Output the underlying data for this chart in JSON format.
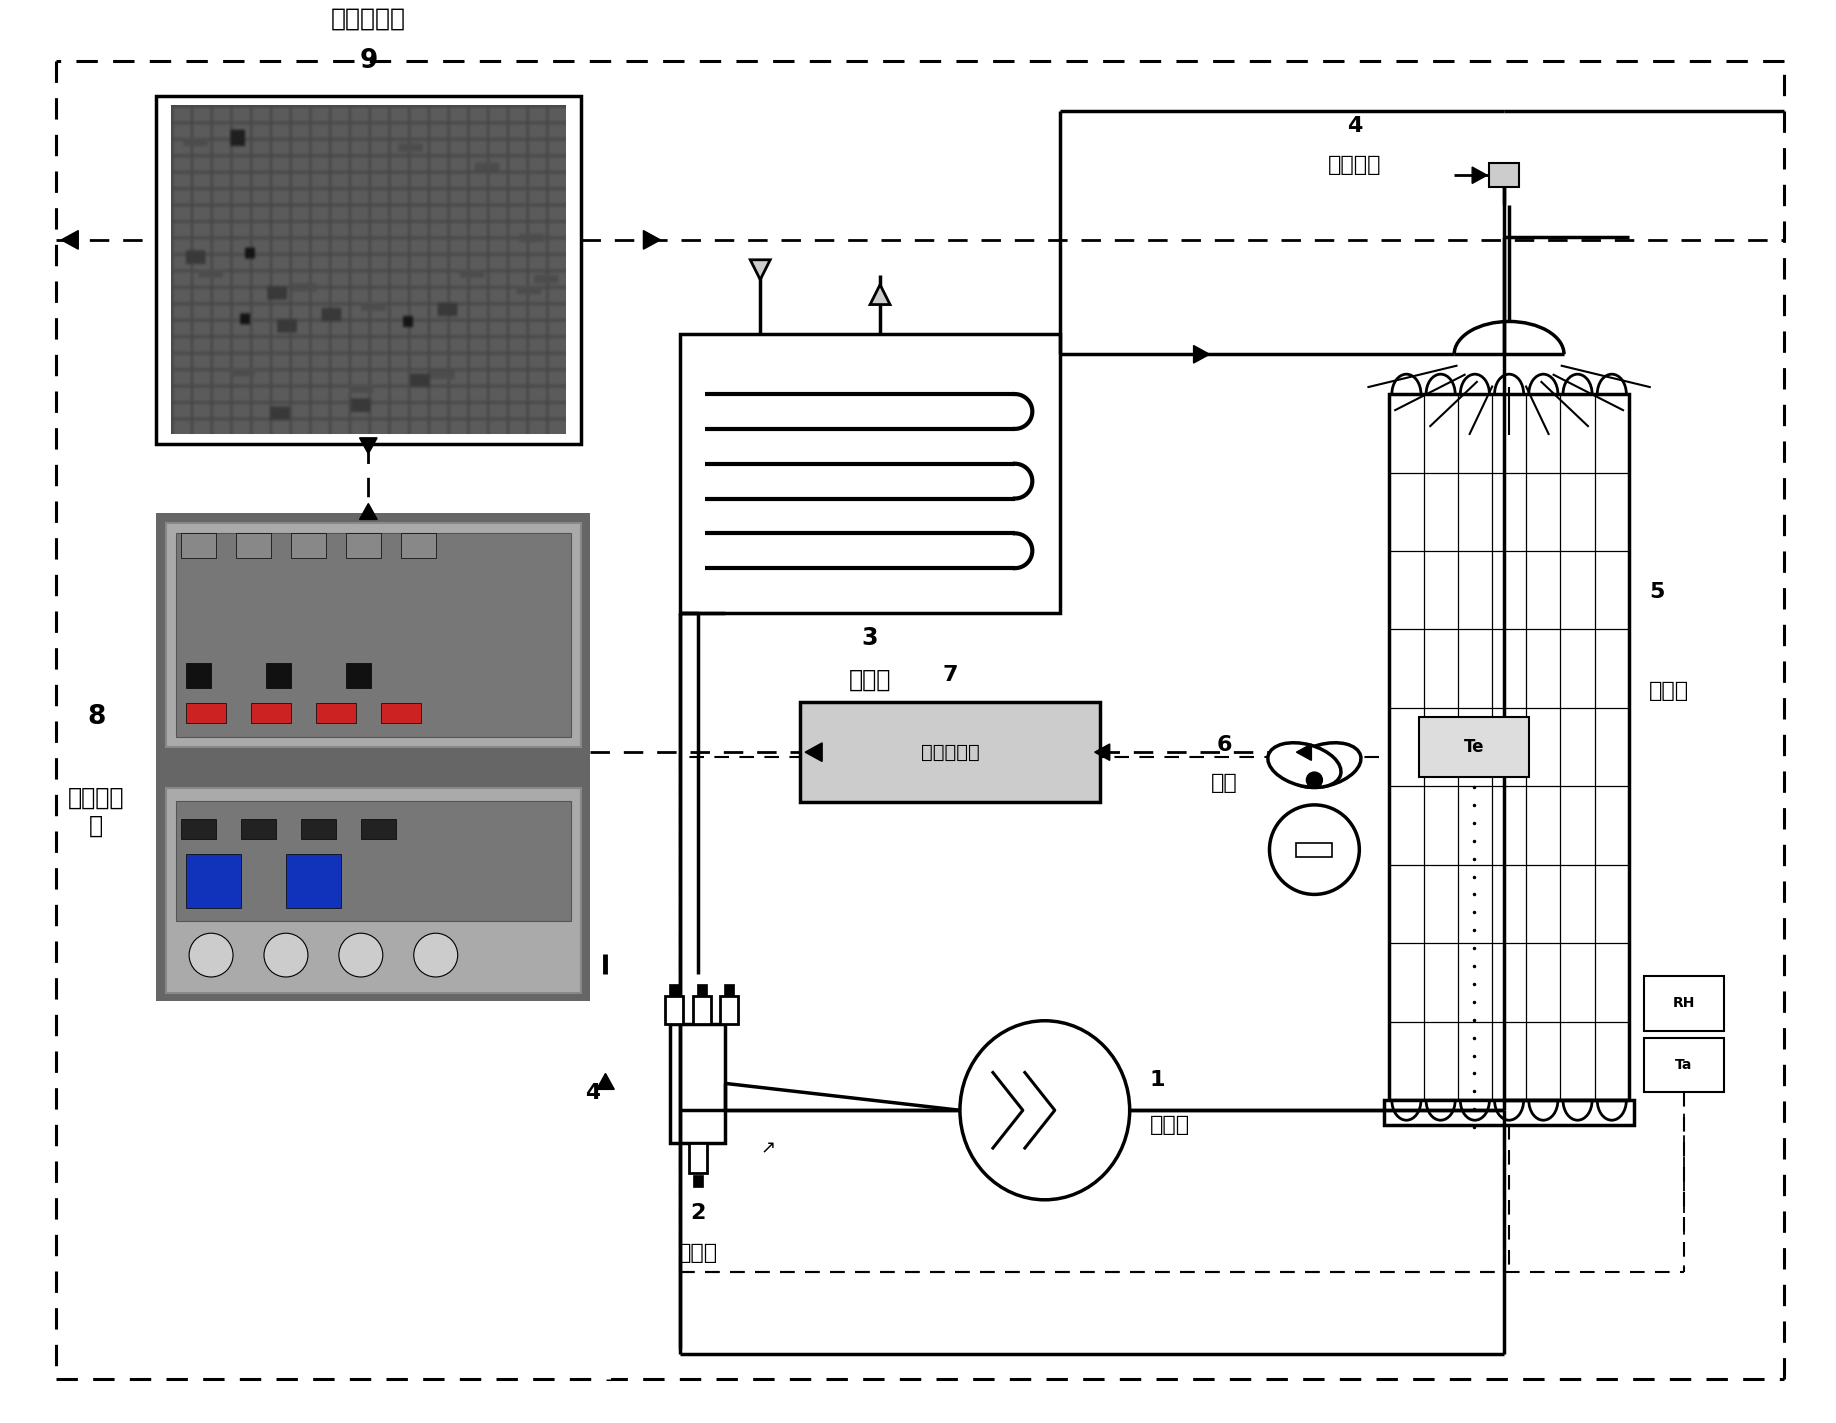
{
  "bg": "#ffffff",
  "lc": "#000000",
  "labels": {
    "1": "压缩机",
    "2": "四通阀",
    "3": "冷凝器",
    "4": "节流装置",
    "5": "蒸发器",
    "6": "风机",
    "7": "电流互感器",
    "8n": "8",
    "8t": "除霜控制\n器",
    "9n": "9",
    "9t": "机组控制器",
    "Te": "Te",
    "RH": "RH",
    "Ta": "Ta"
  },
  "lw": 2.5,
  "lwd": 2.0,
  "fw": 18.36,
  "fh": 14.23
}
